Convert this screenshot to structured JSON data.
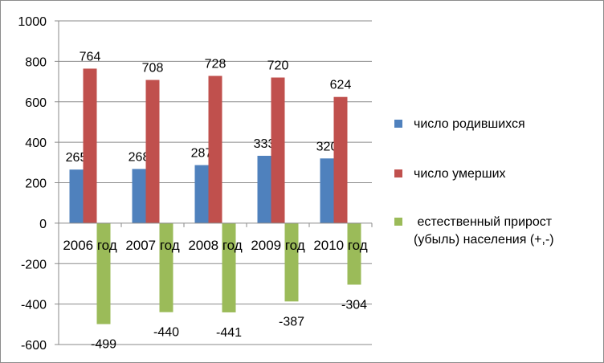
{
  "chart_data": {
    "type": "bar",
    "categories": [
      "2006 год",
      "2007 год",
      "2008 год",
      "2009 год",
      "2010 год"
    ],
    "series": [
      {
        "name": "число родившихся",
        "color": "#4f81bd",
        "values": [
          265,
          268,
          287,
          333,
          320
        ]
      },
      {
        "name": "число умерших",
        "color": "#c0504d",
        "values": [
          764,
          708,
          728,
          720,
          624
        ]
      },
      {
        "name": " естественный прирост (убыль) населения (+,-)",
        "color": "#9bbb59",
        "values": [
          -499,
          -440,
          -441,
          -387,
          -304
        ]
      }
    ],
    "yticks": [
      -600,
      -400,
      -200,
      0,
      200,
      400,
      600,
      800,
      1000
    ],
    "ylim": [
      -600,
      1000
    ],
    "grid": true,
    "legend_position": "right"
  }
}
